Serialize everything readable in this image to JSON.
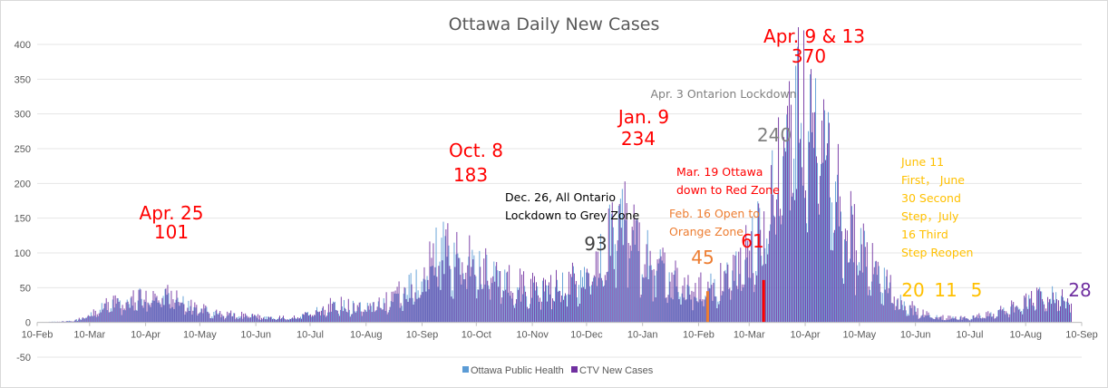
{
  "chart_data": {
    "type": "bar",
    "title": "Ottawa Daily New Cases",
    "xlabel": "",
    "ylabel": "",
    "ylim": [
      -50,
      400
    ],
    "y_ticks": [
      "-50",
      "0",
      "50",
      "100",
      "150",
      "200",
      "250",
      "300",
      "350",
      "400"
    ],
    "x_ticks": [
      "10-Feb",
      "10-Mar",
      "10-Apr",
      "10-May",
      "10-Jun",
      "10-Jul",
      "10-Aug",
      "10-Sep",
      "10-Oct",
      "10-Nov",
      "10-Dec",
      "10-Jan",
      "10-Feb",
      "10-Mar",
      "10-Apr",
      "10-May",
      "10-Jun",
      "10-Jul",
      "10-Aug",
      "10-Sep"
    ],
    "grid": "horizontal",
    "legend_position": "bottom",
    "series": [
      {
        "name": "Ottawa Public Health",
        "color": "#5b9bd5",
        "trend": [
          [
            0,
            0
          ],
          [
            20,
            2
          ],
          [
            29,
            10
          ],
          [
            40,
            25
          ],
          [
            50,
            28
          ],
          [
            62,
            40
          ],
          [
            75,
            35
          ],
          [
            86,
            20
          ],
          [
            100,
            12
          ],
          [
            120,
            8
          ],
          [
            140,
            6
          ],
          [
            150,
            12
          ],
          [
            165,
            25
          ],
          [
            180,
            20
          ],
          [
            195,
            30
          ],
          [
            212,
            60
          ],
          [
            222,
            105
          ],
          [
            232,
            90
          ],
          [
            242,
            80
          ],
          [
            258,
            60
          ],
          [
            272,
            45
          ],
          [
            292,
            50
          ],
          [
            307,
            75
          ],
          [
            322,
            140
          ],
          [
            335,
            100
          ],
          [
            350,
            60
          ],
          [
            365,
            45
          ],
          [
            378,
            55
          ],
          [
            393,
            100
          ],
          [
            405,
            150
          ],
          [
            413,
            250
          ],
          [
            420,
            300
          ],
          [
            432,
            270
          ],
          [
            444,
            170
          ],
          [
            456,
            100
          ],
          [
            468,
            60
          ],
          [
            479,
            25
          ],
          [
            490,
            12
          ],
          [
            502,
            6
          ],
          [
            515,
            6
          ],
          [
            530,
            12
          ],
          [
            545,
            25
          ],
          [
            560,
            40
          ],
          [
            572,
            30
          ]
        ]
      },
      {
        "name": "CTV New Cases",
        "color": "#7030a0",
        "trend": [
          [
            0,
            0
          ],
          [
            20,
            2
          ],
          [
            29,
            10
          ],
          [
            40,
            28
          ],
          [
            50,
            30
          ],
          [
            62,
            45
          ],
          [
            75,
            40
          ],
          [
            86,
            22
          ],
          [
            100,
            14
          ],
          [
            120,
            9
          ],
          [
            140,
            7
          ],
          [
            150,
            14
          ],
          [
            165,
            28
          ],
          [
            180,
            22
          ],
          [
            195,
            35
          ],
          [
            212,
            65
          ],
          [
            222,
            112
          ],
          [
            232,
            96
          ],
          [
            242,
            86
          ],
          [
            258,
            66
          ],
          [
            272,
            50
          ],
          [
            292,
            56
          ],
          [
            307,
            80
          ],
          [
            322,
            150
          ],
          [
            335,
            108
          ],
          [
            350,
            66
          ],
          [
            365,
            50
          ],
          [
            378,
            60
          ],
          [
            393,
            105
          ],
          [
            405,
            160
          ],
          [
            413,
            262
          ],
          [
            420,
            310
          ],
          [
            432,
            280
          ],
          [
            444,
            180
          ],
          [
            456,
            108
          ],
          [
            468,
            65
          ],
          [
            479,
            28
          ],
          [
            490,
            14
          ],
          [
            502,
            7
          ],
          [
            515,
            7
          ],
          [
            530,
            14
          ],
          [
            545,
            28
          ],
          [
            560,
            44
          ],
          [
            572,
            32
          ]
        ]
      }
    ],
    "highlights": [
      {
        "day": 371,
        "value": 45,
        "color": "#ed7d31"
      },
      {
        "day": 402,
        "value": 61,
        "color": "#ff0000"
      }
    ],
    "annotations": [
      {
        "lines": [
          "Apr. 25"
        ],
        "x": "10-Apr",
        "y": "150",
        "color": "#ff0000",
        "size": "large"
      },
      {
        "lines": [
          "101"
        ],
        "x": "10-Apr",
        "y": "120",
        "color": "#ff0000",
        "size": "large"
      },
      {
        "lines": [
          "Oct. 8"
        ],
        "x": "10-Oct",
        "y": "235",
        "color": "#ff0000",
        "size": "large"
      },
      {
        "lines": [
          "183"
        ],
        "x": "10-Oct",
        "y": "205",
        "color": "#ff0000",
        "size": "large"
      },
      {
        "lines": [
          "Dec. 26, All Ontario",
          "Lockdown to Grey Zone"
        ],
        "x": "10-Nov",
        "y": "175",
        "color": "#000000",
        "size": "small"
      },
      {
        "lines": [
          "93"
        ],
        "x": "10-Dec",
        "y": "108",
        "color": "#404040",
        "size": "large"
      },
      {
        "lines": [
          "Jan. 9"
        ],
        "x": "10-Jan",
        "y": "290",
        "color": "#ff0000",
        "size": "large"
      },
      {
        "lines": [
          "234"
        ],
        "x": "10-Jan",
        "y": "260",
        "color": "#ff0000",
        "size": "large"
      },
      {
        "lines": [
          "Feb. 16 Open to",
          "Orange Zone"
        ],
        "x": "10-Feb",
        "y": "155",
        "color": "#ed7d31",
        "size": "small"
      },
      {
        "lines": [
          "45"
        ],
        "x": "10-Feb",
        "y": "85",
        "color": "#ed7d31",
        "size": "large"
      },
      {
        "lines": [
          "Mar. 19 Ottawa",
          "down to Red Zone"
        ],
        "x": "10-Mar",
        "y": "215",
        "color": "#ff0000",
        "size": "small"
      },
      {
        "lines": [
          "61"
        ],
        "x": "10-Mar",
        "y": "100",
        "color": "#ff0000",
        "size": "large"
      },
      {
        "lines": [
          "240"
        ],
        "x": "10-Mar",
        "y": "255",
        "color": "#7f7f7f",
        "size": "large"
      },
      {
        "lines": [
          "Apr. 3 Ontarion Lockdown"
        ],
        "x": "10-Apr",
        "y": "325",
        "color": "#7f7f7f",
        "size": "small"
      },
      {
        "lines": [
          "Apr. 9 & 13"
        ],
        "x": "10-Apr",
        "y": "405",
        "color": "#ff0000",
        "size": "large"
      },
      {
        "lines": [
          "370"
        ],
        "x": "10-Apr",
        "y": "375",
        "color": "#ff0000",
        "size": "large"
      },
      {
        "lines": [
          "June 11",
          "First， June",
          "30 Second",
          "Step，July",
          "16 Third",
          "Step Reopen"
        ],
        "x": "10-Jun",
        "y": "235",
        "color": "#ffc000",
        "size": "small"
      },
      {
        "lines": [
          "20"
        ],
        "x": "10-Jun",
        "y": "40",
        "color": "#ffc000",
        "size": "large"
      },
      {
        "lines": [
          "11"
        ],
        "x": "10-Jul",
        "y": "40",
        "color": "#ffc000",
        "size": "large"
      },
      {
        "lines": [
          "5"
        ],
        "x": "10-Jul",
        "y": "40",
        "color": "#ffc000",
        "size": "large"
      },
      {
        "lines": [
          "28"
        ],
        "x": "10-Sep",
        "y": "40",
        "color": "#7030a0",
        "size": "large"
      }
    ]
  }
}
